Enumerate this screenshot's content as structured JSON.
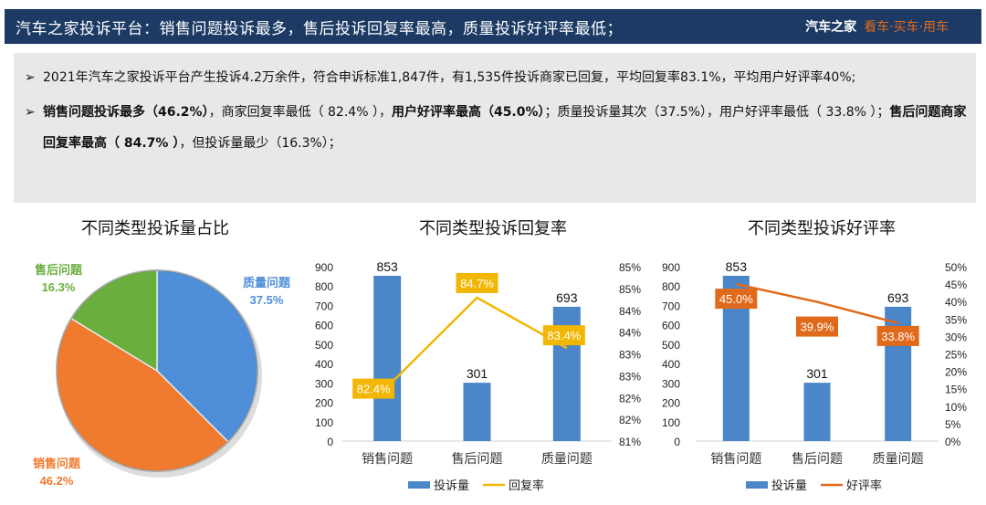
{
  "header": {
    "title": "汽车之家投诉平台：销售问题投诉最多，售后投诉回复率最高，质量投诉好评率最低；",
    "brand_name": "汽车之家",
    "brand_slogan": "看车·买车·用车",
    "background_color": "#1c3a64",
    "slogan_color": "#e06a1b"
  },
  "summary": {
    "bullet1": "2021年汽车之家投诉平台产生投诉4.2万余件，符合申诉标准1,847件，有1,535件投诉商家已回复，平均回复率83.1%，平均用户好评率40%;",
    "bullet2_parts": {
      "p1": "销售问题投诉最多（46.2%）",
      "p2": "，商家回复率最低（ 82.4% ），",
      "p3": "用户好评率最高（45.0%）",
      "p4": "；质量投诉量其次（37.5%），用户好评率最低（ 33.8% ）；",
      "p5": "售后问题商家回复率最高（ 84.7% ）",
      "p6": "，但投诉量最少（16.3%）；"
    },
    "arrow": "➢"
  },
  "chart_data": [
    {
      "type": "pie",
      "title": "不同类型投诉量占比",
      "categories": [
        "质量问题",
        "销售问题",
        "售后问题"
      ],
      "values": [
        37.5,
        46.2,
        16.3
      ],
      "labels": [
        "37.5%",
        "46.2%",
        "16.3%"
      ],
      "colors": [
        "#4f8fd9",
        "#f07a2e",
        "#6aae3e"
      ]
    },
    {
      "type": "bar+line",
      "title": "不同类型投诉回复率",
      "categories": [
        "销售问题",
        "售后问题",
        "质量问题"
      ],
      "series": [
        {
          "name": "投诉量",
          "type": "bar",
          "axis": "left",
          "values": [
            853,
            301,
            693
          ],
          "color": "#4a86c8"
        },
        {
          "name": "回复率",
          "type": "line",
          "axis": "right",
          "values": [
            82.4,
            84.7,
            83.4
          ],
          "labels": [
            "82.4%",
            "84.7%",
            "83.4%"
          ],
          "color": "#f2b705"
        }
      ],
      "left_ticks": [
        "900",
        "800",
        "700",
        "600",
        "500",
        "400",
        "300",
        "200",
        "100",
        "0"
      ],
      "right_ticks": [
        "85%",
        "85%",
        "84%",
        "84%",
        "83%",
        "83%",
        "82%",
        "82%",
        "81%"
      ],
      "ylim_left": [
        0,
        900
      ],
      "ylim_right": [
        81,
        85.5
      ],
      "legend": [
        "投诉量",
        "回复率"
      ]
    },
    {
      "type": "bar+line",
      "title": "不同类型投诉好评率",
      "categories": [
        "销售问题",
        "售后问题",
        "质量问题"
      ],
      "series": [
        {
          "name": "投诉量",
          "type": "bar",
          "axis": "left",
          "values": [
            853,
            301,
            693
          ],
          "color": "#4a86c8"
        },
        {
          "name": "好评率",
          "type": "line",
          "axis": "right",
          "values": [
            45.0,
            39.9,
            33.8
          ],
          "labels": [
            "45.0%",
            "39.9%",
            "33.8%"
          ],
          "color": "#e06a1b"
        }
      ],
      "left_ticks": [
        "900",
        "800",
        "700",
        "600",
        "500",
        "400",
        "300",
        "200",
        "100",
        "0"
      ],
      "right_ticks": [
        "50%",
        "45%",
        "40%",
        "35%",
        "30%",
        "25%",
        "20%",
        "15%",
        "10%",
        "5%",
        "0%"
      ],
      "ylim_left": [
        0,
        900
      ],
      "ylim_right": [
        0,
        50
      ],
      "legend": [
        "投诉量",
        "好评率"
      ]
    }
  ]
}
